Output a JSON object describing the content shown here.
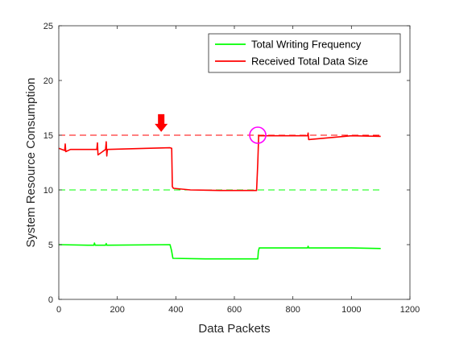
{
  "chart_data": {
    "type": "line",
    "title": "",
    "xlabel": "Data Packets",
    "ylabel": "System Resource Consumption",
    "xlim": [
      0,
      1200
    ],
    "ylim": [
      0,
      25
    ],
    "xticks": [
      0,
      200,
      400,
      600,
      800,
      1000,
      1200
    ],
    "yticks": [
      0,
      5,
      10,
      15,
      20,
      25
    ],
    "xtick_labels": [
      "0",
      "200",
      "400",
      "600",
      "800",
      "1000",
      "1200"
    ],
    "ytick_labels": [
      "0",
      "5",
      "10",
      "15",
      "20",
      "25"
    ],
    "grid": false,
    "legend_position": "top-right",
    "series": [
      {
        "name": "Total Writing Frequency",
        "color": "#00ff00",
        "x": [
          0,
          100,
          120,
          122,
          124,
          160,
          162,
          164,
          380,
          385,
          390,
          500,
          600,
          680,
          682,
          685,
          850,
          852,
          854,
          1000,
          1100
        ],
        "y": [
          5.0,
          4.95,
          4.95,
          5.15,
          4.95,
          4.95,
          5.1,
          4.95,
          5.0,
          4.5,
          3.75,
          3.7,
          3.7,
          3.7,
          4.4,
          4.7,
          4.7,
          4.85,
          4.7,
          4.7,
          4.65
        ]
      },
      {
        "name": "Received Total Data Size",
        "color": "#ff0000",
        "x": [
          0,
          20,
          22,
          24,
          40,
          130,
          132,
          134,
          160,
          162,
          164,
          166,
          300,
          380,
          386,
          388,
          392,
          450,
          550,
          600,
          676,
          680,
          683,
          685,
          800,
          850,
          852,
          854,
          1000,
          1100
        ],
        "y": [
          13.8,
          13.6,
          14.2,
          13.5,
          13.7,
          13.7,
          14.3,
          13.2,
          13.7,
          14.4,
          13.1,
          13.7,
          13.8,
          13.85,
          13.8,
          10.3,
          10.15,
          10.0,
          9.95,
          9.95,
          9.95,
          12.5,
          15.0,
          14.95,
          14.95,
          14.95,
          15.2,
          14.6,
          14.95,
          14.9
        ]
      },
      {
        "name": "",
        "style": "dashed",
        "color": "#ff0000",
        "x": [
          0,
          1100
        ],
        "y": [
          15,
          15
        ]
      },
      {
        "name": "",
        "style": "dashed",
        "color": "#00ff00",
        "x": [
          0,
          1100
        ],
        "y": [
          10,
          10
        ]
      }
    ],
    "annotations": [
      {
        "type": "arrow-down",
        "color": "#ff0000",
        "x": 350,
        "y": 15.3
      },
      {
        "type": "circle",
        "color": "#ff00ff",
        "x": 680,
        "y": 15.0
      }
    ]
  }
}
